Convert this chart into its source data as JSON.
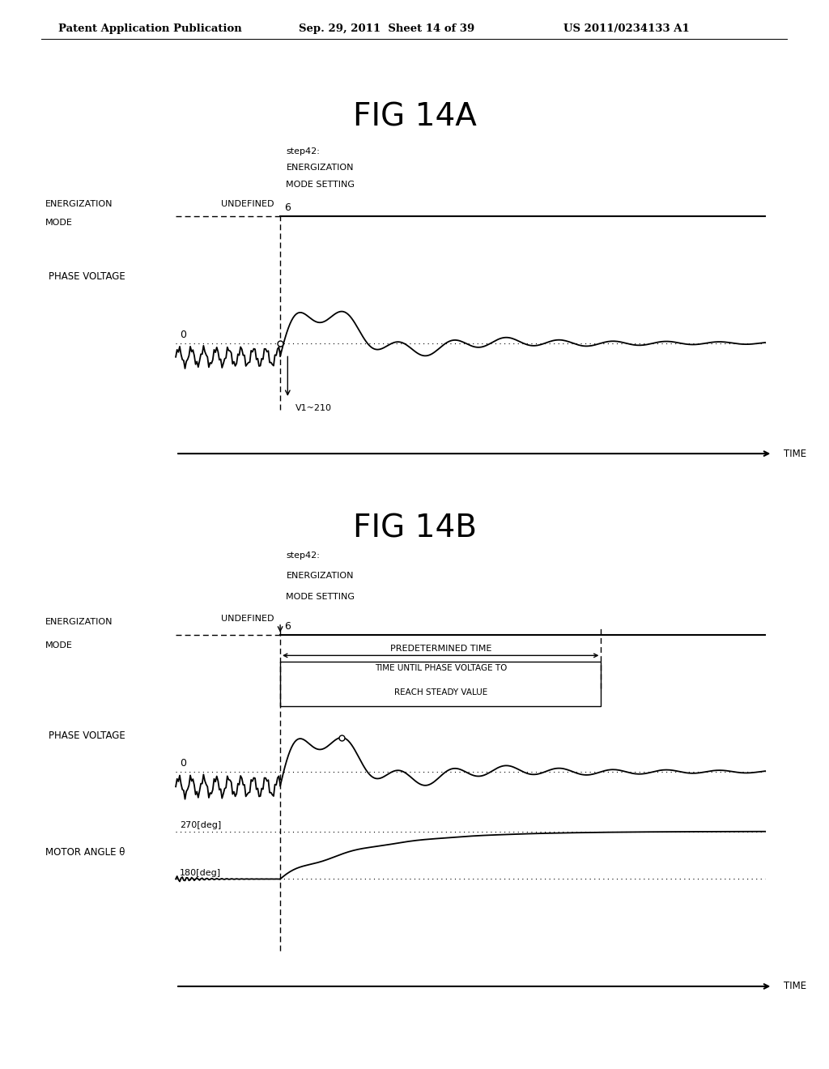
{
  "bg_color": "#ffffff",
  "header_text": "Patent Application Publication",
  "header_date": "Sep. 29, 2011  Sheet 14 of 39",
  "header_patent": "US 2011/0234133 A1",
  "fig_title_A": "FIG 14A",
  "fig_title_B": "FIG 14B",
  "step_label": "step42:",
  "energ_label1": "ENERGIZATION",
  "energ_label2": "MODE SETTING",
  "undefined_label": "UNDEFINED",
  "energ_mode_label1": "ENERGIZATION",
  "energ_mode_label2": "MODE",
  "phase_voltage_label": "PHASE VOLTAGE",
  "zero_label": "0",
  "six_label": "6",
  "v1_210_label": "V1~210",
  "time_label": "TIME",
  "predetermined_label": "PREDETERMINED TIME",
  "time_until_label1": "TIME UNTIL PHASE VOLTAGE TO",
  "time_until_label2": "REACH STEADY VALUE",
  "deg270_label": "270[deg]",
  "deg180_label": "180[deg]",
  "motor_angle_label1": "MOTOR ANGLE θ"
}
